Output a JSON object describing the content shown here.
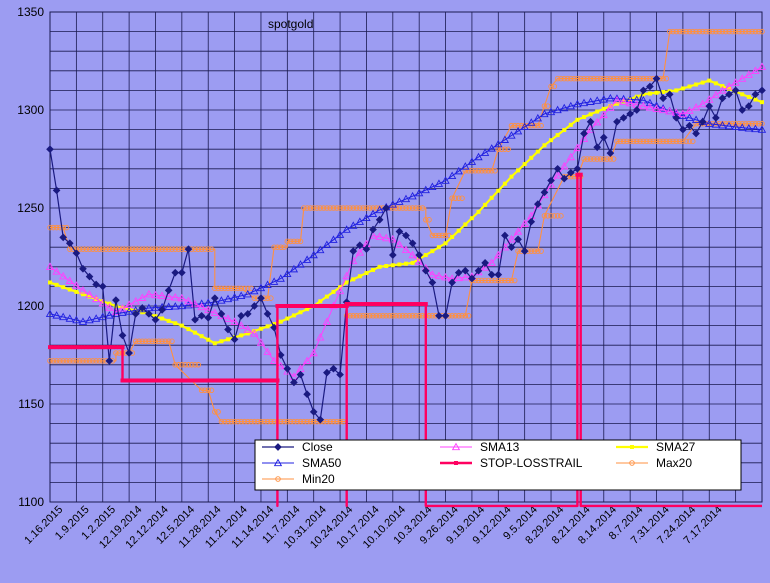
{
  "chart_data": {
    "type": "line",
    "title": "spotgold",
    "ylim": [
      1100,
      1350
    ],
    "yticks": [
      1100,
      1150,
      1200,
      1250,
      1300,
      1350
    ],
    "x_tick_labels": [
      "1.16.2015",
      "1.9.2015",
      "1.2.2015",
      "12.19.2014",
      "12.12.2014",
      "12.5.2014",
      "11.28.2014",
      "11.21.2014",
      "11.14.2014",
      "11.7.2014",
      "10.31.2014",
      "10.24.2014",
      "10.17.2014",
      "10.10.2014",
      "10.3.2014",
      "9.26.2014",
      "9.19.2014",
      "9.12.2014",
      "9.5.2014",
      "8.29.2014",
      "8.21.2014",
      "8.14.2014",
      "8.7.2014",
      "7.31.2014",
      "7.24.2014",
      "7.17.2014"
    ],
    "x_direction": "reverse-chronological",
    "grid": true,
    "legend_position": "bottom-right",
    "colors": {
      "background": "#9c9cf2",
      "grid": "#1a1a50",
      "title": "#f0a030",
      "Close": "#1a1a80",
      "SMA13": "#ff40ff",
      "SMA27": "#ffff00",
      "SMA50": "#2020e0",
      "STOP-LOSSTRAIL": "#ff0060",
      "Max20": "#ff9040",
      "Min20": "#ff9040"
    },
    "series": [
      {
        "name": "Close",
        "values": [
          [
            0,
            1280
          ],
          [
            2,
            1259
          ],
          [
            4,
            1235
          ],
          [
            6,
            1232
          ],
          [
            8,
            1227
          ],
          [
            10,
            1219
          ],
          [
            12,
            1215
          ],
          [
            14,
            1211
          ],
          [
            16,
            1210
          ],
          [
            18,
            1172
          ],
          [
            20,
            1203
          ],
          [
            22,
            1185
          ],
          [
            24,
            1176
          ],
          [
            26,
            1196
          ],
          [
            28,
            1199
          ],
          [
            30,
            1196
          ],
          [
            32,
            1193
          ],
          [
            34,
            1198
          ],
          [
            36,
            1208
          ],
          [
            38,
            1217
          ],
          [
            40,
            1217
          ],
          [
            42,
            1229
          ],
          [
            44,
            1193
          ],
          [
            46,
            1195
          ],
          [
            48,
            1194
          ],
          [
            50,
            1204
          ],
          [
            52,
            1196
          ],
          [
            54,
            1188
          ],
          [
            56,
            1183
          ],
          [
            58,
            1195
          ],
          [
            60,
            1196
          ],
          [
            62,
            1200
          ],
          [
            64,
            1204
          ],
          [
            66,
            1196
          ],
          [
            68,
            1189
          ],
          [
            70,
            1175
          ],
          [
            72,
            1168
          ],
          [
            74,
            1161
          ],
          [
            76,
            1165
          ],
          [
            78,
            1155
          ],
          [
            80,
            1146
          ],
          [
            82,
            1142
          ],
          [
            84,
            1166
          ],
          [
            86,
            1168
          ],
          [
            88,
            1165
          ],
          [
            90,
            1202
          ],
          [
            92,
            1228
          ],
          [
            94,
            1231
          ],
          [
            96,
            1229
          ],
          [
            98,
            1239
          ],
          [
            100,
            1244
          ],
          [
            102,
            1250
          ],
          [
            104,
            1226
          ],
          [
            106,
            1238
          ],
          [
            108,
            1236
          ],
          [
            110,
            1232
          ],
          [
            112,
            1226
          ],
          [
            114,
            1218
          ],
          [
            116,
            1212
          ],
          [
            118,
            1195
          ],
          [
            120,
            1195
          ],
          [
            122,
            1212
          ],
          [
            124,
            1217
          ],
          [
            126,
            1218
          ],
          [
            128,
            1214
          ],
          [
            130,
            1218
          ],
          [
            132,
            1222
          ],
          [
            134,
            1216
          ],
          [
            136,
            1216
          ],
          [
            138,
            1236
          ],
          [
            140,
            1230
          ],
          [
            142,
            1234
          ],
          [
            144,
            1228
          ],
          [
            146,
            1243
          ],
          [
            148,
            1252
          ],
          [
            150,
            1258
          ],
          [
            152,
            1264
          ],
          [
            154,
            1270
          ],
          [
            156,
            1265
          ],
          [
            158,
            1268
          ],
          [
            160,
            1270
          ],
          [
            162,
            1288
          ],
          [
            164,
            1294
          ],
          [
            166,
            1281
          ],
          [
            168,
            1286
          ],
          [
            170,
            1278
          ],
          [
            172,
            1294
          ],
          [
            174,
            1296
          ],
          [
            176,
            1298
          ],
          [
            178,
            1300
          ],
          [
            180,
            1310
          ],
          [
            182,
            1312
          ],
          [
            184,
            1316
          ],
          [
            186,
            1306
          ],
          [
            188,
            1308
          ],
          [
            190,
            1296
          ],
          [
            192,
            1290
          ],
          [
            194,
            1292
          ],
          [
            196,
            1288
          ],
          [
            198,
            1294
          ],
          [
            200,
            1302
          ],
          [
            202,
            1296
          ],
          [
            204,
            1306
          ],
          [
            206,
            1308
          ],
          [
            208,
            1310
          ],
          [
            210,
            1300
          ],
          [
            212,
            1302
          ],
          [
            214,
            1308
          ],
          [
            216,
            1310
          ]
        ]
      },
      {
        "name": "SMA13",
        "values": [
          [
            0,
            1220
          ],
          [
            10,
            1208
          ],
          [
            20,
            1197
          ],
          [
            30,
            1206
          ],
          [
            40,
            1204
          ],
          [
            48,
            1198
          ],
          [
            56,
            1192
          ],
          [
            62,
            1186
          ],
          [
            68,
            1172
          ],
          [
            74,
            1164
          ],
          [
            80,
            1176
          ],
          [
            86,
            1200
          ],
          [
            92,
            1223
          ],
          [
            98,
            1236
          ],
          [
            104,
            1234
          ],
          [
            110,
            1226
          ],
          [
            116,
            1216
          ],
          [
            122,
            1214
          ],
          [
            128,
            1215
          ],
          [
            134,
            1222
          ],
          [
            140,
            1234
          ],
          [
            146,
            1246
          ],
          [
            152,
            1262
          ],
          [
            158,
            1276
          ],
          [
            164,
            1290
          ],
          [
            172,
            1305
          ],
          [
            180,
            1302
          ],
          [
            186,
            1300
          ],
          [
            192,
            1298
          ],
          [
            198,
            1303
          ],
          [
            204,
            1310
          ],
          [
            210,
            1316
          ],
          [
            216,
            1322
          ]
        ]
      },
      {
        "name": "SMA27",
        "values": [
          [
            0,
            1212
          ],
          [
            10,
            1206
          ],
          [
            20,
            1200
          ],
          [
            30,
            1196
          ],
          [
            40,
            1190
          ],
          [
            50,
            1181
          ],
          [
            60,
            1186
          ],
          [
            70,
            1192
          ],
          [
            80,
            1200
          ],
          [
            90,
            1212
          ],
          [
            100,
            1220
          ],
          [
            110,
            1222
          ],
          [
            120,
            1232
          ],
          [
            130,
            1248
          ],
          [
            140,
            1266
          ],
          [
            150,
            1282
          ],
          [
            160,
            1295
          ],
          [
            170,
            1302
          ],
          [
            180,
            1308
          ],
          [
            190,
            1310
          ],
          [
            200,
            1315
          ],
          [
            210,
            1308
          ],
          [
            216,
            1304
          ]
        ]
      },
      {
        "name": "SMA50",
        "values": [
          [
            0,
            1196
          ],
          [
            10,
            1192
          ],
          [
            20,
            1196
          ],
          [
            30,
            1199
          ],
          [
            40,
            1200
          ],
          [
            50,
            1202
          ],
          [
            60,
            1206
          ],
          [
            70,
            1214
          ],
          [
            80,
            1226
          ],
          [
            90,
            1239
          ],
          [
            100,
            1249
          ],
          [
            110,
            1256
          ],
          [
            120,
            1264
          ],
          [
            130,
            1276
          ],
          [
            140,
            1287
          ],
          [
            150,
            1298
          ],
          [
            160,
            1303
          ],
          [
            170,
            1306
          ],
          [
            180,
            1305
          ],
          [
            190,
            1298
          ],
          [
            200,
            1293
          ],
          [
            210,
            1291
          ],
          [
            216,
            1290
          ]
        ]
      },
      {
        "name": "STOP-LOSSTRAIL",
        "values": [
          [
            0,
            1179
          ],
          [
            22,
            1179
          ],
          [
            22,
            1162
          ],
          [
            69,
            1162
          ],
          [
            69,
            1098
          ],
          [
            69,
            1200
          ],
          [
            90,
            1200
          ],
          [
            90,
            1098
          ],
          [
            90,
            1201
          ],
          [
            114,
            1201
          ],
          [
            114,
            1098
          ],
          [
            160,
            1098
          ],
          [
            160,
            1267
          ],
          [
            161,
            1267
          ],
          [
            161,
            1098
          ],
          [
            216,
            1098
          ]
        ]
      },
      {
        "name": "Max20",
        "values": [
          [
            0,
            1240
          ],
          [
            4,
            1240
          ],
          [
            6,
            1229
          ],
          [
            50,
            1229
          ],
          [
            50,
            1209
          ],
          [
            58,
            1209
          ],
          [
            62,
            1204
          ],
          [
            66,
            1204
          ],
          [
            68,
            1230
          ],
          [
            72,
            1230
          ],
          [
            72,
            1233
          ],
          [
            76,
            1233
          ],
          [
            77,
            1250
          ],
          [
            114,
            1250
          ],
          [
            114,
            1244
          ],
          [
            116,
            1236
          ],
          [
            120,
            1236
          ],
          [
            122,
            1255
          ],
          [
            126,
            1269
          ],
          [
            134,
            1269
          ],
          [
            136,
            1280
          ],
          [
            140,
            1292
          ],
          [
            148,
            1292
          ],
          [
            150,
            1302
          ],
          [
            152,
            1312
          ],
          [
            154,
            1316
          ],
          [
            186,
            1316
          ],
          [
            188,
            1340
          ],
          [
            216,
            1340
          ]
        ]
      },
      {
        "name": "Min20",
        "values": [
          [
            0,
            1172
          ],
          [
            20,
            1172
          ],
          [
            20,
            1176
          ],
          [
            24,
            1176
          ],
          [
            26,
            1182
          ],
          [
            36,
            1182
          ],
          [
            38,
            1170
          ],
          [
            46,
            1157
          ],
          [
            48,
            1157
          ],
          [
            50,
            1146
          ],
          [
            52,
            1141
          ],
          [
            90,
            1141
          ],
          [
            90,
            1195
          ],
          [
            120,
            1195
          ],
          [
            126,
            1195
          ],
          [
            128,
            1213
          ],
          [
            140,
            1213
          ],
          [
            142,
            1228
          ],
          [
            148,
            1228
          ],
          [
            150,
            1246
          ],
          [
            156,
            1266
          ],
          [
            160,
            1266
          ],
          [
            162,
            1275
          ],
          [
            170,
            1275
          ],
          [
            172,
            1284
          ],
          [
            190,
            1284
          ],
          [
            192,
            1284
          ],
          [
            196,
            1293
          ],
          [
            216,
            1293
          ]
        ]
      }
    ]
  }
}
